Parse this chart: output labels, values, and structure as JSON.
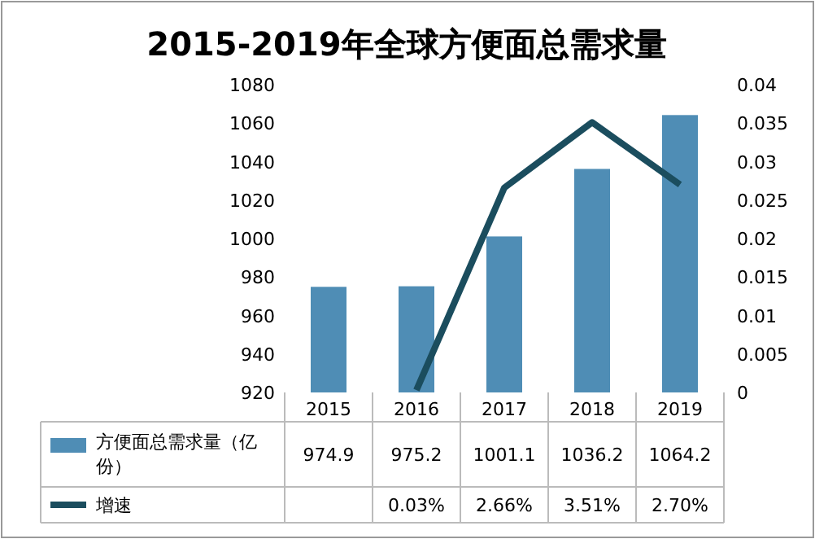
{
  "chart_data": {
    "type": "bar",
    "title": "2015-2019年全球方便面总需求量",
    "categories": [
      "2015",
      "2016",
      "2017",
      "2018",
      "2019"
    ],
    "series": [
      {
        "name": "方便面总需求量（亿份）",
        "color": "#4f8db5",
        "values": [
          974.9,
          975.2,
          1001.1,
          1036.2,
          1064.2
        ],
        "value_labels": [
          "974.9",
          "975.2",
          "1001.1",
          "1036.2",
          "1064.2"
        ]
      },
      {
        "name": "增速",
        "type": "line",
        "axis": "y2",
        "color": "#1b4d5e",
        "values": [
          null,
          0.0003,
          0.0266,
          0.0351,
          0.027
        ],
        "value_labels": [
          null,
          "0.03%",
          "2.66%",
          "3.51%",
          "2.70%"
        ]
      }
    ],
    "ylim": [
      920,
      1080
    ],
    "yticks": [
      920,
      940,
      960,
      980,
      1000,
      1020,
      1040,
      1060,
      1080
    ],
    "y2lim": [
      0,
      0.04
    ],
    "y2ticks": [
      0,
      0.005,
      0.01,
      0.015,
      0.02,
      0.025,
      0.03,
      0.035,
      0.04
    ],
    "legend": "bottom left",
    "grid": false
  }
}
